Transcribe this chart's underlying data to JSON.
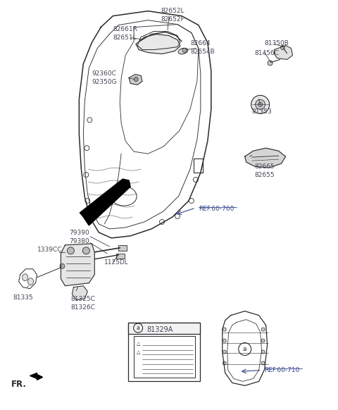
{
  "bg_color": "#ffffff",
  "line_color": "#2a2a2a",
  "label_color": "#444455",
  "ref_color": "#334488",
  "fig_w": 4.8,
  "fig_h": 5.82,
  "dpi": 100,
  "xlim": [
    0,
    480
  ],
  "ylim": [
    582,
    0
  ]
}
